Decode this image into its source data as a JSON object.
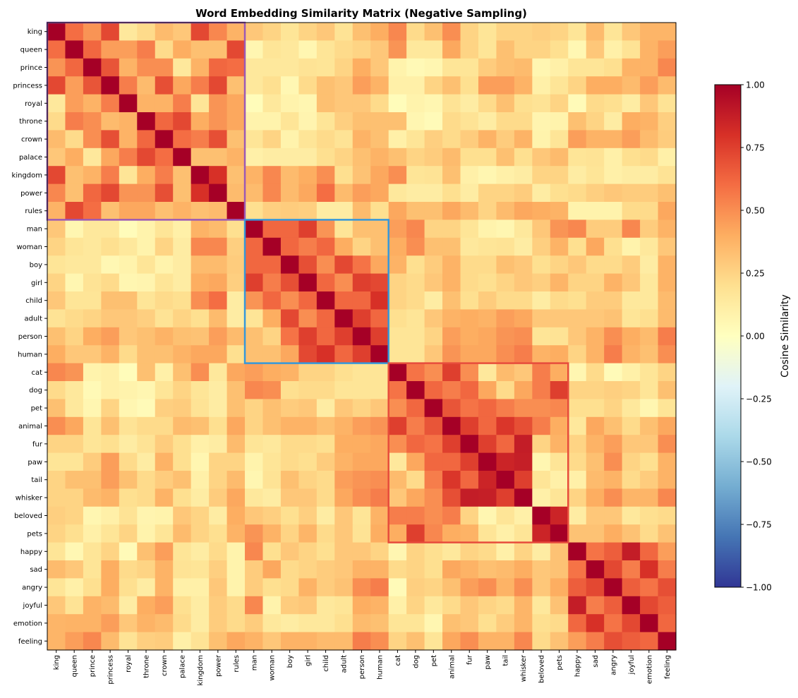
{
  "chart_data": {
    "type": "heatmap",
    "title": "Word Embedding Similarity Matrix (Negative Sampling)",
    "labels": [
      "king",
      "queen",
      "prince",
      "princess",
      "royal",
      "throne",
      "crown",
      "palace",
      "kingdom",
      "power",
      "rules",
      "man",
      "woman",
      "boy",
      "girl",
      "child",
      "adult",
      "person",
      "human",
      "cat",
      "dog",
      "pet",
      "animal",
      "fur",
      "paw",
      "tail",
      "whisker",
      "beloved",
      "pets",
      "happy",
      "sad",
      "angry",
      "joyful",
      "emotion",
      "feeling"
    ],
    "colormap": "RdYlBu_r",
    "value_range": [
      -1,
      1
    ],
    "colorbar": {
      "label": "Cosine Similarity",
      "ticks": [
        -1,
        -0.75,
        -0.5,
        -0.25,
        0,
        0.25,
        0.5,
        0.75,
        1
      ],
      "tick_labels": [
        "−1.00",
        "−0.75",
        "−0.50",
        "−0.25",
        "0.00",
        "0.25",
        "0.50",
        "0.75",
        "1.00"
      ]
    },
    "groups": [
      {
        "start": "king",
        "end": "rules",
        "color": "#9b59b6"
      },
      {
        "start": "man",
        "end": "human",
        "color": "#3498db"
      },
      {
        "start": "cat",
        "end": "pets",
        "color": "#e74c3c"
      }
    ],
    "matrix": [
      [
        1,
        0.6,
        0.48,
        0.72,
        0.15,
        0.22,
        0.35,
        0.3,
        0.72,
        0.52,
        0.38,
        0.3,
        0.25,
        0.17,
        0.25,
        0.3,
        0.18,
        0.33,
        0.4,
        0.52,
        0.22,
        0.33,
        0.5,
        0.25,
        0.17,
        0.25,
        0.25,
        0.27,
        0.25,
        0.17,
        0.35,
        0.17,
        0.3,
        0.37,
        0.37
      ],
      [
        0.6,
        1,
        0.62,
        0.45,
        0.45,
        0.55,
        0.22,
        0.4,
        0.33,
        0.33,
        0.72,
        0.06,
        0.17,
        0.15,
        0.06,
        0.17,
        0.22,
        0.25,
        0.3,
        0.48,
        0.15,
        0.15,
        0.42,
        0.25,
        0.17,
        0.33,
        0.25,
        0.25,
        0.2,
        0.05,
        0.3,
        0.1,
        0.18,
        0.38,
        0.45
      ],
      [
        0.48,
        0.62,
        1,
        0.68,
        0.38,
        0.5,
        0.5,
        0.15,
        0.38,
        0.62,
        0.6,
        0.15,
        0.15,
        0.15,
        0.18,
        0.17,
        0.25,
        0.4,
        0.3,
        0.08,
        0.04,
        0.06,
        0.17,
        0.17,
        0.28,
        0.33,
        0.35,
        0.06,
        0.1,
        0.17,
        0.17,
        0.2,
        0.38,
        0.38,
        0.52
      ],
      [
        0.72,
        0.45,
        0.68,
        1,
        0.55,
        0.35,
        0.7,
        0.42,
        0.55,
        0.72,
        0.33,
        0.15,
        0.2,
        0.05,
        0.22,
        0.33,
        0.3,
        0.45,
        0.38,
        0.1,
        0.1,
        0.25,
        0.33,
        0.2,
        0.45,
        0.45,
        0.38,
        0.1,
        0.17,
        0.25,
        0.4,
        0.4,
        0.35,
        0.45,
        0.35
      ],
      [
        0.15,
        0.45,
        0.38,
        0.55,
        1,
        0.38,
        0.38,
        0.55,
        0.17,
        0.48,
        0.42,
        0.02,
        0.15,
        0.08,
        0.06,
        0.33,
        0.3,
        0.3,
        0.22,
        0.02,
        0.08,
        0.06,
        0.18,
        0.12,
        0.22,
        0.33,
        0.2,
        0.18,
        0.25,
        0.03,
        0.22,
        0.2,
        0.12,
        0.3,
        0.18
      ],
      [
        0.22,
        0.55,
        0.5,
        0.35,
        0.38,
        1,
        0.62,
        0.72,
        0.4,
        0.48,
        0.42,
        0.08,
        0.08,
        0.17,
        0.07,
        0.17,
        0.27,
        0.33,
        0.33,
        0.33,
        0.06,
        0.03,
        0.22,
        0.18,
        0.12,
        0.22,
        0.22,
        0.07,
        0.08,
        0.33,
        0.25,
        0.12,
        0.4,
        0.38,
        0.27
      ],
      [
        0.35,
        0.22,
        0.5,
        0.7,
        0.38,
        0.62,
        1,
        0.6,
        0.55,
        0.7,
        0.33,
        0.17,
        0.25,
        0.08,
        0.17,
        0.22,
        0.18,
        0.38,
        0.33,
        0.1,
        0.17,
        0.27,
        0.22,
        0.28,
        0.38,
        0.28,
        0.38,
        0.08,
        0.17,
        0.45,
        0.38,
        0.38,
        0.45,
        0.35,
        0.28
      ],
      [
        0.3,
        0.4,
        0.15,
        0.42,
        0.55,
        0.72,
        0.6,
        1,
        0.33,
        0.33,
        0.38,
        0.1,
        0.12,
        0.12,
        0.12,
        0.2,
        0.25,
        0.33,
        0.38,
        0.33,
        0.25,
        0.28,
        0.35,
        0.2,
        0.2,
        0.33,
        0.2,
        0.3,
        0.35,
        0.17,
        0.18,
        0.1,
        0.2,
        0.22,
        0.1
      ],
      [
        0.72,
        0.33,
        0.38,
        0.55,
        0.17,
        0.4,
        0.55,
        0.33,
        1,
        0.8,
        0.33,
        0.38,
        0.52,
        0.35,
        0.4,
        0.5,
        0.2,
        0.32,
        0.42,
        0.5,
        0.17,
        0.18,
        0.33,
        0.1,
        0.06,
        0.1,
        0.12,
        0.25,
        0.25,
        0.12,
        0.17,
        0.1,
        0.12,
        0.12,
        0.18
      ],
      [
        0.52,
        0.33,
        0.62,
        0.72,
        0.48,
        0.48,
        0.7,
        0.33,
        0.8,
        1,
        0.35,
        0.35,
        0.52,
        0.35,
        0.42,
        0.6,
        0.35,
        0.45,
        0.42,
        0.15,
        0.12,
        0.12,
        0.2,
        0.12,
        0.25,
        0.25,
        0.28,
        0.12,
        0.2,
        0.22,
        0.27,
        0.3,
        0.28,
        0.28,
        0.33
      ],
      [
        0.38,
        0.72,
        0.6,
        0.33,
        0.42,
        0.42,
        0.33,
        0.38,
        0.33,
        0.35,
        1,
        0.2,
        0.27,
        0.28,
        0.27,
        0.12,
        0.12,
        0.35,
        0.2,
        0.42,
        0.33,
        0.33,
        0.42,
        0.35,
        0.25,
        0.35,
        0.42,
        0.4,
        0.38,
        0.08,
        0.08,
        0.08,
        0.22,
        0.22,
        0.42
      ],
      [
        0.3,
        0.06,
        0.15,
        0.15,
        0.02,
        0.08,
        0.17,
        0.1,
        0.38,
        0.35,
        0.2,
        1,
        0.62,
        0.62,
        0.75,
        0.48,
        0.17,
        0.33,
        0.33,
        0.45,
        0.52,
        0.25,
        0.25,
        0.17,
        0.08,
        0.06,
        0.15,
        0.3,
        0.48,
        0.52,
        0.28,
        0.28,
        0.52,
        0.28,
        0.38
      ],
      [
        0.25,
        0.17,
        0.15,
        0.2,
        0.15,
        0.08,
        0.25,
        0.12,
        0.52,
        0.52,
        0.27,
        0.62,
        1,
        0.62,
        0.55,
        0.62,
        0.4,
        0.25,
        0.33,
        0.4,
        0.5,
        0.33,
        0.33,
        0.15,
        0.17,
        0.18,
        0.12,
        0.27,
        0.38,
        0.2,
        0.42,
        0.2,
        0.08,
        0.15,
        0.3
      ],
      [
        0.17,
        0.15,
        0.15,
        0.05,
        0.08,
        0.17,
        0.08,
        0.12,
        0.35,
        0.35,
        0.28,
        0.62,
        0.62,
        1,
        0.7,
        0.5,
        0.72,
        0.58,
        0.42,
        0.38,
        0.2,
        0.28,
        0.38,
        0.22,
        0.22,
        0.33,
        0.3,
        0.2,
        0.25,
        0.3,
        0.22,
        0.22,
        0.28,
        0.12,
        0.38
      ],
      [
        0.25,
        0.06,
        0.18,
        0.22,
        0.06,
        0.07,
        0.17,
        0.12,
        0.4,
        0.42,
        0.27,
        0.75,
        0.55,
        0.7,
        1,
        0.62,
        0.5,
        0.75,
        0.72,
        0.25,
        0.22,
        0.3,
        0.38,
        0.22,
        0.2,
        0.25,
        0.3,
        0.27,
        0.37,
        0.25,
        0.25,
        0.38,
        0.3,
        0.15,
        0.38
      ],
      [
        0.3,
        0.17,
        0.17,
        0.33,
        0.33,
        0.17,
        0.22,
        0.2,
        0.5,
        0.6,
        0.12,
        0.48,
        0.62,
        0.5,
        0.62,
        1,
        0.62,
        0.62,
        0.8,
        0.25,
        0.22,
        0.12,
        0.33,
        0.2,
        0.28,
        0.22,
        0.22,
        0.12,
        0.22,
        0.2,
        0.28,
        0.28,
        0.15,
        0.15,
        0.35
      ],
      [
        0.18,
        0.22,
        0.25,
        0.3,
        0.3,
        0.27,
        0.18,
        0.25,
        0.2,
        0.35,
        0.12,
        0.17,
        0.4,
        0.72,
        0.5,
        0.62,
        1,
        0.75,
        0.62,
        0.2,
        0.17,
        0.3,
        0.38,
        0.4,
        0.38,
        0.45,
        0.42,
        0.3,
        0.3,
        0.3,
        0.3,
        0.32,
        0.17,
        0.2,
        0.35
      ],
      [
        0.33,
        0.25,
        0.4,
        0.45,
        0.3,
        0.33,
        0.38,
        0.33,
        0.32,
        0.45,
        0.35,
        0.33,
        0.25,
        0.58,
        0.75,
        0.62,
        0.75,
        1,
        0.75,
        0.17,
        0.17,
        0.25,
        0.45,
        0.4,
        0.42,
        0.48,
        0.5,
        0.17,
        0.18,
        0.3,
        0.38,
        0.5,
        0.4,
        0.35,
        0.55
      ],
      [
        0.4,
        0.3,
        0.3,
        0.38,
        0.22,
        0.33,
        0.33,
        0.38,
        0.42,
        0.42,
        0.2,
        0.33,
        0.33,
        0.42,
        0.72,
        0.8,
        0.62,
        0.75,
        1,
        0.17,
        0.17,
        0.3,
        0.48,
        0.42,
        0.42,
        0.5,
        0.55,
        0.38,
        0.4,
        0.25,
        0.38,
        0.55,
        0.38,
        0.33,
        0.5
      ],
      [
        0.52,
        0.48,
        0.08,
        0.1,
        0.02,
        0.33,
        0.1,
        0.33,
        0.5,
        0.15,
        0.42,
        0.45,
        0.4,
        0.38,
        0.25,
        0.25,
        0.2,
        0.17,
        0.17,
        1,
        0.58,
        0.5,
        0.75,
        0.5,
        0.15,
        0.35,
        0.3,
        0.55,
        0.4,
        0.06,
        0.22,
        0.03,
        0.1,
        0.17,
        0.25
      ],
      [
        0.22,
        0.15,
        0.04,
        0.1,
        0.08,
        0.06,
        0.17,
        0.25,
        0.17,
        0.12,
        0.33,
        0.52,
        0.5,
        0.2,
        0.22,
        0.22,
        0.17,
        0.17,
        0.17,
        0.58,
        1,
        0.62,
        0.55,
        0.62,
        0.42,
        0.22,
        0.42,
        0.55,
        0.75,
        0.25,
        0.25,
        0.27,
        0.25,
        0.17,
        0.33
      ],
      [
        0.33,
        0.15,
        0.06,
        0.25,
        0.06,
        0.03,
        0.27,
        0.28,
        0.18,
        0.12,
        0.33,
        0.25,
        0.33,
        0.28,
        0.3,
        0.12,
        0.3,
        0.25,
        0.3,
        0.5,
        0.62,
        1,
        0.68,
        0.58,
        0.62,
        0.55,
        0.5,
        0.5,
        0.52,
        0.2,
        0.2,
        0.25,
        0.15,
        0.06,
        0.17
      ],
      [
        0.5,
        0.42,
        0.17,
        0.33,
        0.18,
        0.22,
        0.22,
        0.35,
        0.33,
        0.2,
        0.42,
        0.25,
        0.33,
        0.38,
        0.38,
        0.33,
        0.38,
        0.45,
        0.48,
        0.75,
        0.55,
        0.68,
        1,
        0.75,
        0.62,
        0.78,
        0.7,
        0.55,
        0.4,
        0.15,
        0.42,
        0.33,
        0.22,
        0.33,
        0.42
      ],
      [
        0.25,
        0.25,
        0.17,
        0.2,
        0.12,
        0.18,
        0.28,
        0.2,
        0.1,
        0.12,
        0.35,
        0.17,
        0.15,
        0.22,
        0.22,
        0.2,
        0.4,
        0.4,
        0.42,
        0.5,
        0.62,
        0.58,
        0.75,
        1,
        0.75,
        0.62,
        0.88,
        0.25,
        0.38,
        0.25,
        0.38,
        0.45,
        0.3,
        0.3,
        0.5
      ],
      [
        0.17,
        0.17,
        0.28,
        0.45,
        0.22,
        0.12,
        0.38,
        0.2,
        0.06,
        0.25,
        0.25,
        0.08,
        0.17,
        0.22,
        0.2,
        0.28,
        0.38,
        0.42,
        0.42,
        0.15,
        0.42,
        0.62,
        0.62,
        0.75,
        1,
        0.85,
        0.87,
        0.06,
        0.17,
        0.22,
        0.33,
        0.5,
        0.25,
        0.2,
        0.38
      ],
      [
        0.25,
        0.33,
        0.33,
        0.45,
        0.33,
        0.22,
        0.28,
        0.33,
        0.1,
        0.25,
        0.35,
        0.06,
        0.18,
        0.33,
        0.25,
        0.22,
        0.45,
        0.48,
        0.5,
        0.35,
        0.22,
        0.55,
        0.78,
        0.62,
        0.85,
        1,
        0.75,
        0.17,
        0.1,
        0.1,
        0.35,
        0.38,
        0.22,
        0.28,
        0.38
      ],
      [
        0.25,
        0.25,
        0.35,
        0.38,
        0.2,
        0.22,
        0.38,
        0.2,
        0.12,
        0.28,
        0.42,
        0.15,
        0.12,
        0.3,
        0.3,
        0.22,
        0.42,
        0.5,
        0.55,
        0.3,
        0.42,
        0.5,
        0.7,
        0.88,
        0.87,
        0.75,
        1,
        0.1,
        0.17,
        0.25,
        0.4,
        0.5,
        0.37,
        0.37,
        0.52
      ],
      [
        0.27,
        0.25,
        0.06,
        0.1,
        0.18,
        0.07,
        0.08,
        0.3,
        0.25,
        0.12,
        0.4,
        0.3,
        0.27,
        0.2,
        0.27,
        0.12,
        0.3,
        0.17,
        0.38,
        0.55,
        0.55,
        0.5,
        0.55,
        0.25,
        0.06,
        0.17,
        0.1,
        1,
        0.85,
        0.12,
        0.3,
        0.3,
        0.15,
        0.2,
        0.22
      ],
      [
        0.25,
        0.2,
        0.1,
        0.17,
        0.25,
        0.08,
        0.17,
        0.35,
        0.25,
        0.2,
        0.38,
        0.48,
        0.38,
        0.25,
        0.37,
        0.22,
        0.3,
        0.18,
        0.4,
        0.4,
        0.75,
        0.52,
        0.4,
        0.38,
        0.17,
        0.1,
        0.17,
        0.85,
        1,
        0.32,
        0.32,
        0.4,
        0.32,
        0.22,
        0.32
      ],
      [
        0.17,
        0.05,
        0.17,
        0.25,
        0.03,
        0.33,
        0.45,
        0.17,
        0.12,
        0.22,
        0.08,
        0.52,
        0.2,
        0.3,
        0.25,
        0.2,
        0.3,
        0.3,
        0.25,
        0.06,
        0.25,
        0.2,
        0.15,
        0.25,
        0.22,
        0.1,
        0.25,
        0.12,
        0.32,
        1,
        0.58,
        0.65,
        0.88,
        0.62,
        0.45
      ],
      [
        0.35,
        0.3,
        0.17,
        0.4,
        0.22,
        0.25,
        0.38,
        0.18,
        0.17,
        0.27,
        0.08,
        0.28,
        0.42,
        0.22,
        0.25,
        0.28,
        0.3,
        0.38,
        0.38,
        0.22,
        0.25,
        0.2,
        0.42,
        0.38,
        0.33,
        0.35,
        0.4,
        0.3,
        0.32,
        0.58,
        1,
        0.72,
        0.55,
        0.8,
        0.55
      ],
      [
        0.17,
        0.1,
        0.2,
        0.4,
        0.2,
        0.12,
        0.38,
        0.1,
        0.1,
        0.3,
        0.08,
        0.28,
        0.2,
        0.22,
        0.38,
        0.28,
        0.32,
        0.5,
        0.55,
        0.03,
        0.27,
        0.25,
        0.33,
        0.45,
        0.5,
        0.38,
        0.5,
        0.3,
        0.4,
        0.65,
        0.72,
        1,
        0.65,
        0.58,
        0.7
      ],
      [
        0.3,
        0.18,
        0.38,
        0.35,
        0.12,
        0.4,
        0.45,
        0.2,
        0.12,
        0.28,
        0.22,
        0.52,
        0.08,
        0.28,
        0.3,
        0.15,
        0.17,
        0.4,
        0.38,
        0.1,
        0.25,
        0.15,
        0.22,
        0.3,
        0.25,
        0.22,
        0.37,
        0.15,
        0.32,
        0.88,
        0.55,
        0.65,
        1,
        0.72,
        0.65
      ],
      [
        0.37,
        0.38,
        0.38,
        0.45,
        0.3,
        0.38,
        0.35,
        0.22,
        0.12,
        0.28,
        0.22,
        0.28,
        0.15,
        0.12,
        0.15,
        0.15,
        0.2,
        0.35,
        0.33,
        0.17,
        0.17,
        0.06,
        0.33,
        0.3,
        0.2,
        0.28,
        0.37,
        0.2,
        0.22,
        0.62,
        0.8,
        0.58,
        0.72,
        1,
        0.62
      ],
      [
        0.37,
        0.45,
        0.52,
        0.35,
        0.18,
        0.27,
        0.28,
        0.1,
        0.18,
        0.33,
        0.42,
        0.38,
        0.3,
        0.38,
        0.38,
        0.35,
        0.35,
        0.55,
        0.5,
        0.25,
        0.33,
        0.17,
        0.42,
        0.5,
        0.38,
        0.38,
        0.52,
        0.22,
        0.32,
        0.45,
        0.55,
        0.7,
        0.65,
        0.62,
        1
      ]
    ]
  }
}
